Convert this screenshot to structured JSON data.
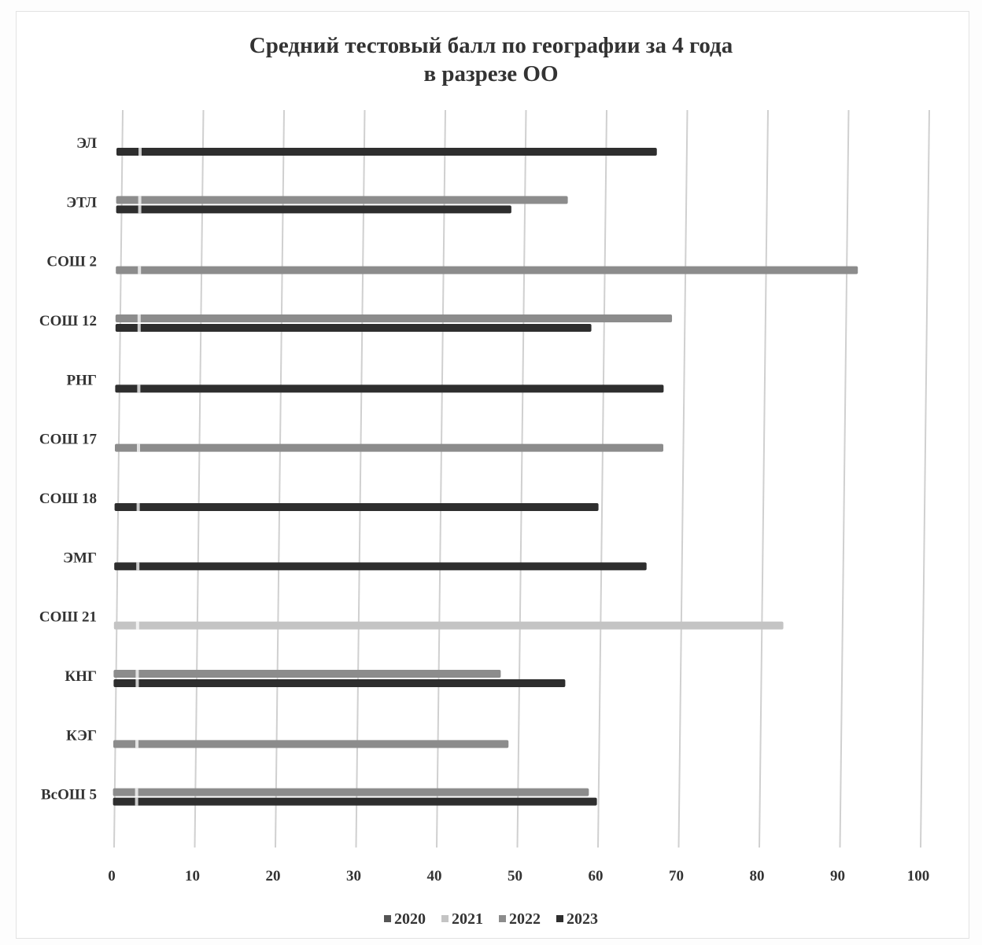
{
  "chart_data": {
    "type": "bar",
    "orientation": "horizontal",
    "title": "Средний тестовый балл по географии за 4 года",
    "subtitle": "в разрезе ОО",
    "categories": [
      "ЭЛ",
      "ЭТЛ",
      "СОШ 2",
      "СОШ 12",
      "РНГ",
      "СОШ 17",
      "СОШ 18",
      "ЭМГ",
      "СОШ 21",
      "КНГ",
      "КЭГ",
      "ВсОШ 5"
    ],
    "series": [
      {
        "name": "2020",
        "values": [
          null,
          null,
          null,
          null,
          null,
          null,
          null,
          null,
          null,
          null,
          null,
          null
        ]
      },
      {
        "name": "2021",
        "values": [
          null,
          null,
          null,
          null,
          null,
          null,
          null,
          null,
          83,
          null,
          null,
          null
        ]
      },
      {
        "name": "2022",
        "values": [
          null,
          56,
          92,
          69,
          null,
          68,
          null,
          null,
          null,
          48,
          49,
          59
        ]
      },
      {
        "name": "2023",
        "values": [
          67,
          49,
          null,
          59,
          68,
          null,
          60,
          66,
          null,
          56,
          null,
          60
        ]
      }
    ],
    "xlim": [
      0,
      100
    ],
    "xticks": [
      "0",
      "10",
      "20",
      "30",
      "40",
      "50",
      "60",
      "70",
      "80",
      "90",
      "100"
    ],
    "grid": true,
    "legend_position": "bottom",
    "colors": {
      "2020": "#555555",
      "2021": "#c4c4c4",
      "2022": "#8c8c8c",
      "2023": "#2e2e2e"
    }
  }
}
